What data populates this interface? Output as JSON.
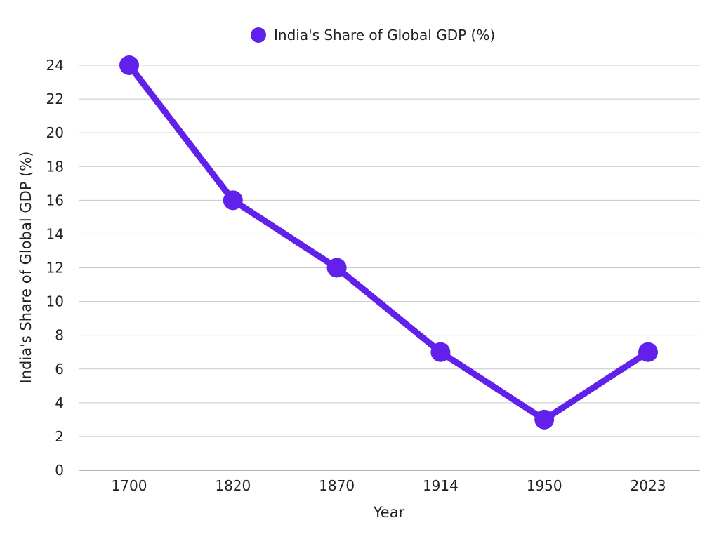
{
  "chart_data": {
    "type": "line",
    "categories": [
      "1700",
      "1820",
      "1870",
      "1914",
      "1950",
      "2023"
    ],
    "series": [
      {
        "name": "India's Share of Global GDP (%)",
        "values": [
          24,
          16,
          12,
          7,
          3,
          7
        ],
        "color": "#6220eb"
      }
    ],
    "xlabel": "Year",
    "ylabel": "India's Share of Global GDP (%)",
    "ylim": [
      0,
      24
    ],
    "yticks": [
      0,
      2,
      4,
      6,
      8,
      10,
      12,
      14,
      16,
      18,
      20,
      22,
      24
    ],
    "grid": true,
    "legend_position": "top-center"
  }
}
